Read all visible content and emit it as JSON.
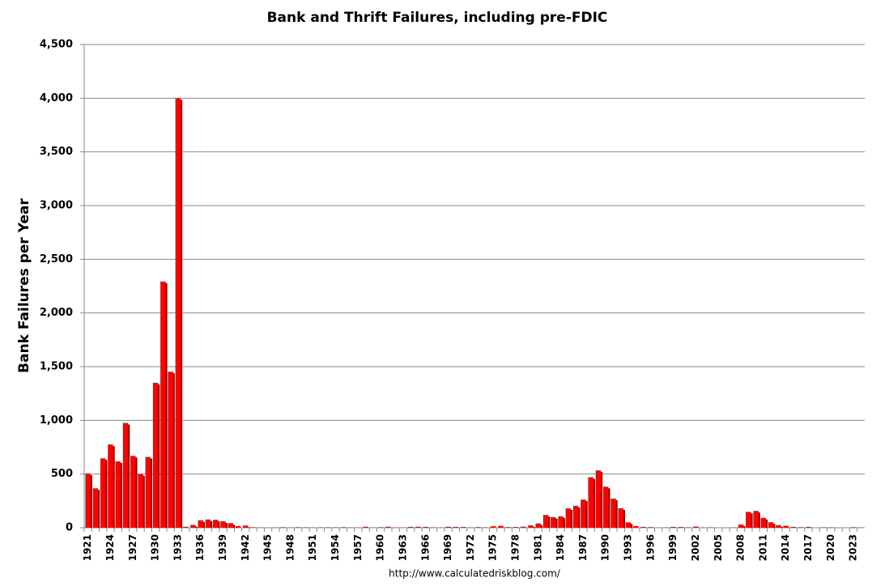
{
  "chart_data": {
    "type": "bar",
    "title": "Bank and Thrift Failures, including pre-FDIC",
    "y_label": "Bank Failures per Year",
    "source": "http://www.calculatedriskblog.com/",
    "color": "#ff0000",
    "grid": true,
    "categories": [
      "1921",
      null,
      null,
      "1924",
      null,
      null,
      "1927",
      null,
      null,
      "1930",
      null,
      null,
      "1933",
      null,
      null,
      "1936",
      null,
      null,
      "1939",
      null,
      null,
      "1942",
      null,
      null,
      "1945",
      null,
      null,
      "1948",
      null,
      null,
      "1951",
      null,
      null,
      "1954",
      null,
      null,
      "1957",
      null,
      null,
      "1960",
      null,
      null,
      "1963",
      null,
      null,
      "1966",
      null,
      null,
      "1969",
      null,
      null,
      "1972",
      null,
      null,
      "1975",
      null,
      null,
      "1978",
      null,
      null,
      "1981",
      null,
      null,
      "1984",
      null,
      null,
      "1987",
      null,
      null,
      "1990",
      null,
      null,
      "1993",
      null,
      null,
      "1996",
      null,
      null,
      "1999",
      null,
      null,
      "2002",
      null,
      null,
      "2005",
      null,
      null,
      "2008",
      null,
      null,
      "2011",
      null,
      null,
      "2014",
      null,
      null,
      "2017",
      null,
      null,
      "2020",
      null,
      null,
      "2023",
      null
    ],
    "values": [
      505,
      367,
      646,
      775,
      618,
      976,
      669,
      499,
      659,
      1350,
      2293,
      1453,
      4000,
      9,
      26,
      69,
      77,
      74,
      60,
      43,
      15,
      20,
      5,
      2,
      1,
      2,
      5,
      3,
      5,
      4,
      3,
      4,
      4,
      4,
      5,
      3,
      3,
      9,
      3,
      5,
      9,
      3,
      2,
      8,
      9,
      8,
      4,
      3,
      9,
      8,
      7,
      3,
      6,
      4,
      14,
      17,
      6,
      7,
      10,
      22,
      40,
      119,
      99,
      106,
      180,
      204,
      262,
      470,
      534,
      382,
      271,
      181,
      50,
      15,
      8,
      6,
      1,
      3,
      8,
      7,
      4,
      11,
      3,
      4,
      0,
      0,
      3,
      30,
      148,
      157,
      92,
      51,
      24,
      18,
      8,
      5,
      8,
      0,
      4,
      4,
      0,
      0,
      5,
      2
    ],
    "ylim": [
      0,
      4500
    ],
    "yticks": [
      0,
      {
        "value": 500,
        "label": "500"
      },
      {
        "value": 1000,
        "label": "1,000"
      },
      {
        "value": 1500,
        "label": "1,500"
      },
      {
        "value": 2000,
        "label": "2,000"
      },
      {
        "value": 2500,
        "label": "2,500"
      },
      {
        "value": 3000,
        "label": "3,000"
      },
      {
        "value": 3500,
        "label": "3,500"
      },
      {
        "value": 4000,
        "label": "4,000"
      },
      {
        "value": 4500,
        "label": "4,500"
      }
    ]
  }
}
